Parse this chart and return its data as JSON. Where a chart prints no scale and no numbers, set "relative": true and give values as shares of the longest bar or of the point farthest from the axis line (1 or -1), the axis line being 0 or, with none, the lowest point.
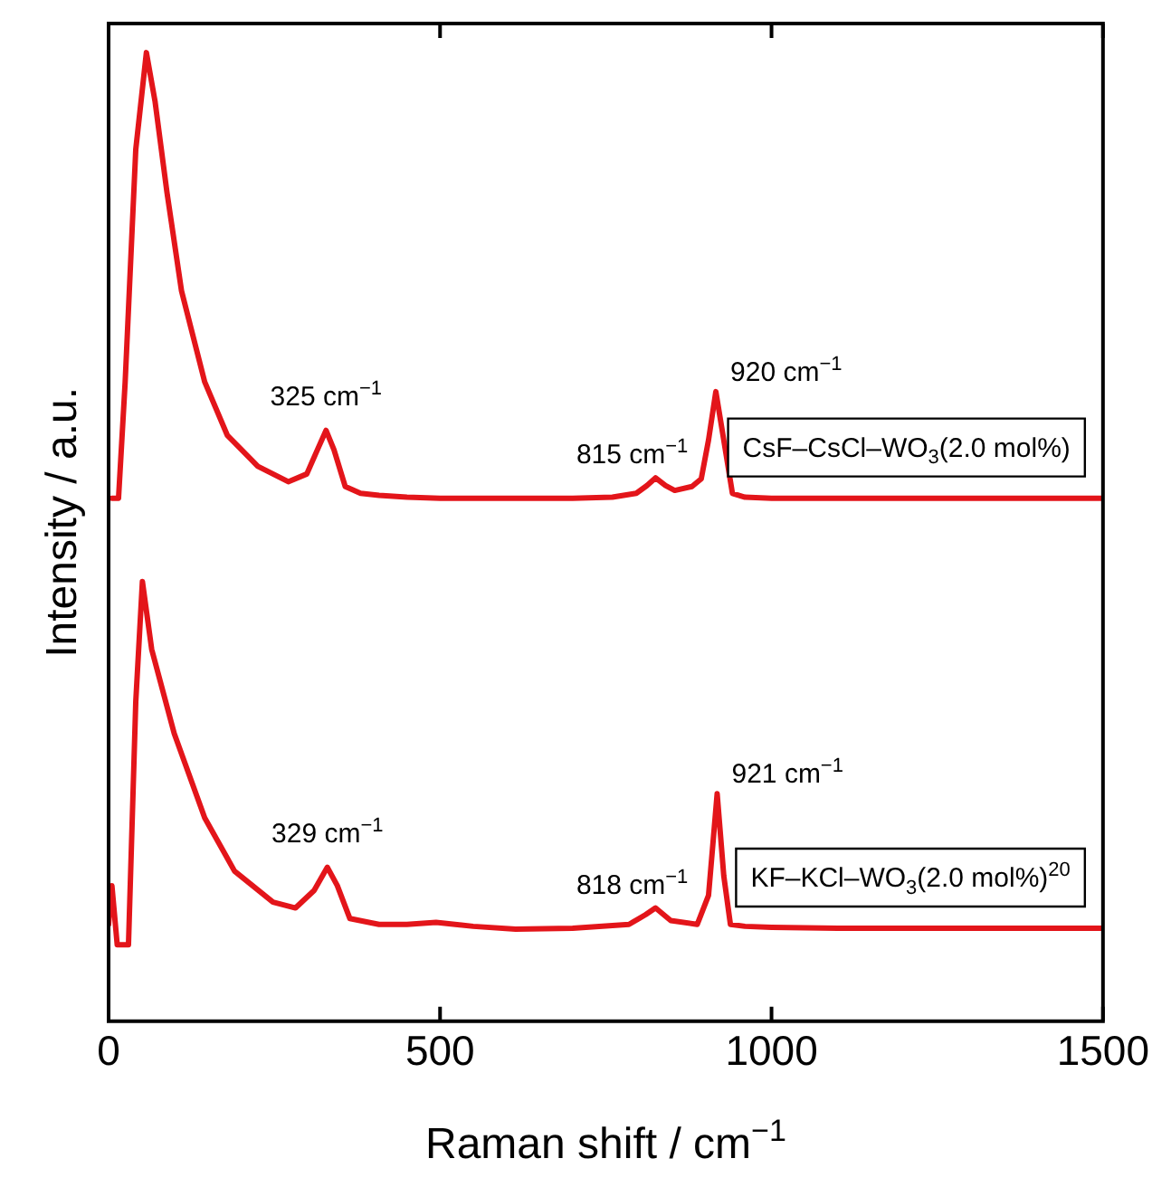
{
  "chart_data": {
    "type": "line",
    "relative": true,
    "xlabel": "Raman shift / cm$^{−1}$",
    "ylabel": "Intensity / a.u.",
    "xlim": [
      0,
      1500
    ],
    "xticks": [
      0,
      500,
      1000,
      1500
    ],
    "grid": false,
    "legend": false,
    "marker": "none",
    "line_style": "solid",
    "series": [
      {
        "name": "CsF–CsCl–WO$_{3}$(2.0 mol%)",
        "color": "#e3151a",
        "x": [
          5,
          15,
          25,
          41,
          57,
          70,
          88,
          110,
          145,
          179,
          225,
          271,
          299,
          315,
          328,
          340,
          357,
          380,
          408,
          450,
          500,
          600,
          700,
          760,
          796,
          812,
          825,
          840,
          854,
          880,
          894,
          905,
          916,
          928,
          941,
          960,
          1000,
          1100,
          1200,
          1300,
          1400,
          1500
        ],
        "values": [
          0.54,
          0.54,
          0.66,
          0.9,
          1,
          0.95,
          0.856,
          0.754,
          0.66,
          0.605,
          0.573,
          0.557,
          0.565,
          0.59,
          0.61,
          0.59,
          0.552,
          0.545,
          0.543,
          0.541,
          0.54,
          0.54,
          0.54,
          0.541,
          0.545,
          0.553,
          0.561,
          0.553,
          0.548,
          0.552,
          0.56,
          0.6,
          0.65,
          0.6,
          0.545,
          0.541,
          0.54,
          0.54,
          0.54,
          0.54,
          0.54,
          0.54
        ]
      },
      {
        "name": "KF–KCl–WO$_{3}$(2.0 mol%)$^{20}$",
        "color": "#e3151a",
        "x": [
          0,
          5,
          13,
          30,
          41,
          51,
          65,
          99,
          145,
          190,
          248,
          282,
          310,
          330,
          345,
          364,
          408,
          450,
          494,
          550,
          614,
          700,
          785,
          810,
          825,
          848,
          888,
          905,
          918,
          928,
          938,
          960,
          1000,
          1100,
          1200,
          1300,
          1400,
          1500
        ],
        "values": [
          0.1,
          0.14,
          0.079,
          0.079,
          0.33,
          0.454,
          0.384,
          0.297,
          0.21,
          0.155,
          0.123,
          0.117,
          0.135,
          0.159,
          0.14,
          0.106,
          0.1,
          0.1,
          0.102,
          0.098,
          0.095,
          0.096,
          0.1,
          0.11,
          0.117,
          0.104,
          0.1,
          0.13,
          0.235,
          0.15,
          0.1,
          0.098,
          0.097,
          0.096,
          0.096,
          0.096,
          0.096,
          0.096
        ]
      }
    ],
    "annotations": [
      {
        "text": "325 cm$^{−1}$",
        "x": 328,
        "y": 0.61
      },
      {
        "text": "815 cm$^{−1}$",
        "x": 825,
        "y": 0.561
      },
      {
        "text": "920 cm$^{−1}$",
        "x": 916,
        "y": 0.65
      },
      {
        "text": "329 cm$^{−1}$",
        "x": 330,
        "y": 0.159
      },
      {
        "text": "818 cm$^{−1}$",
        "x": 825,
        "y": 0.117
      },
      {
        "text": "921 cm$^{−1}$",
        "x": 918,
        "y": 0.235
      }
    ]
  }
}
